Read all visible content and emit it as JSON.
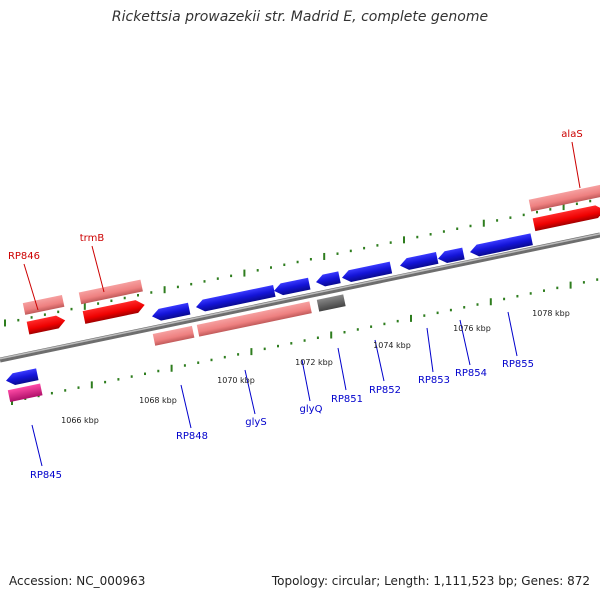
{
  "title": "Rickettsia prowazekii str. Madrid E, complete genome",
  "footer": {
    "accession": "Accession: NC_000963",
    "summary": "Topology: circular; Length: 1,111,523 bp; Genes: 872"
  },
  "colors": {
    "backbone": "#8c8c8c",
    "gene_blue": "#1a1ae0",
    "gene_red": "#ff0000",
    "gene_pink": "#f08080",
    "gene_magenta": "#e0208a",
    "gene_gray": "#666666",
    "tick_green": "#2e7d1e",
    "label_red": "#cc0000",
    "label_blue": "#0000cc"
  },
  "scale_labels": [
    "1066 kbp",
    "1068 kbp",
    "1070 kbp",
    "1072 kbp",
    "1074 kbp",
    "1076 kbp",
    "1078 kbp"
  ],
  "genes": [
    {
      "name": "RP845",
      "color": "blue"
    },
    {
      "name": "RP846",
      "color": "red"
    },
    {
      "name": "trmB",
      "color": "red"
    },
    {
      "name": "RP848",
      "color": "blue"
    },
    {
      "name": "glyS",
      "color": "blue"
    },
    {
      "name": "glyQ",
      "color": "blue"
    },
    {
      "name": "RP851",
      "color": "blue"
    },
    {
      "name": "RP852",
      "color": "blue"
    },
    {
      "name": "RP853",
      "color": "blue"
    },
    {
      "name": "RP854",
      "color": "blue"
    },
    {
      "name": "RP855",
      "color": "blue"
    },
    {
      "name": "alaS",
      "color": "red"
    }
  ]
}
